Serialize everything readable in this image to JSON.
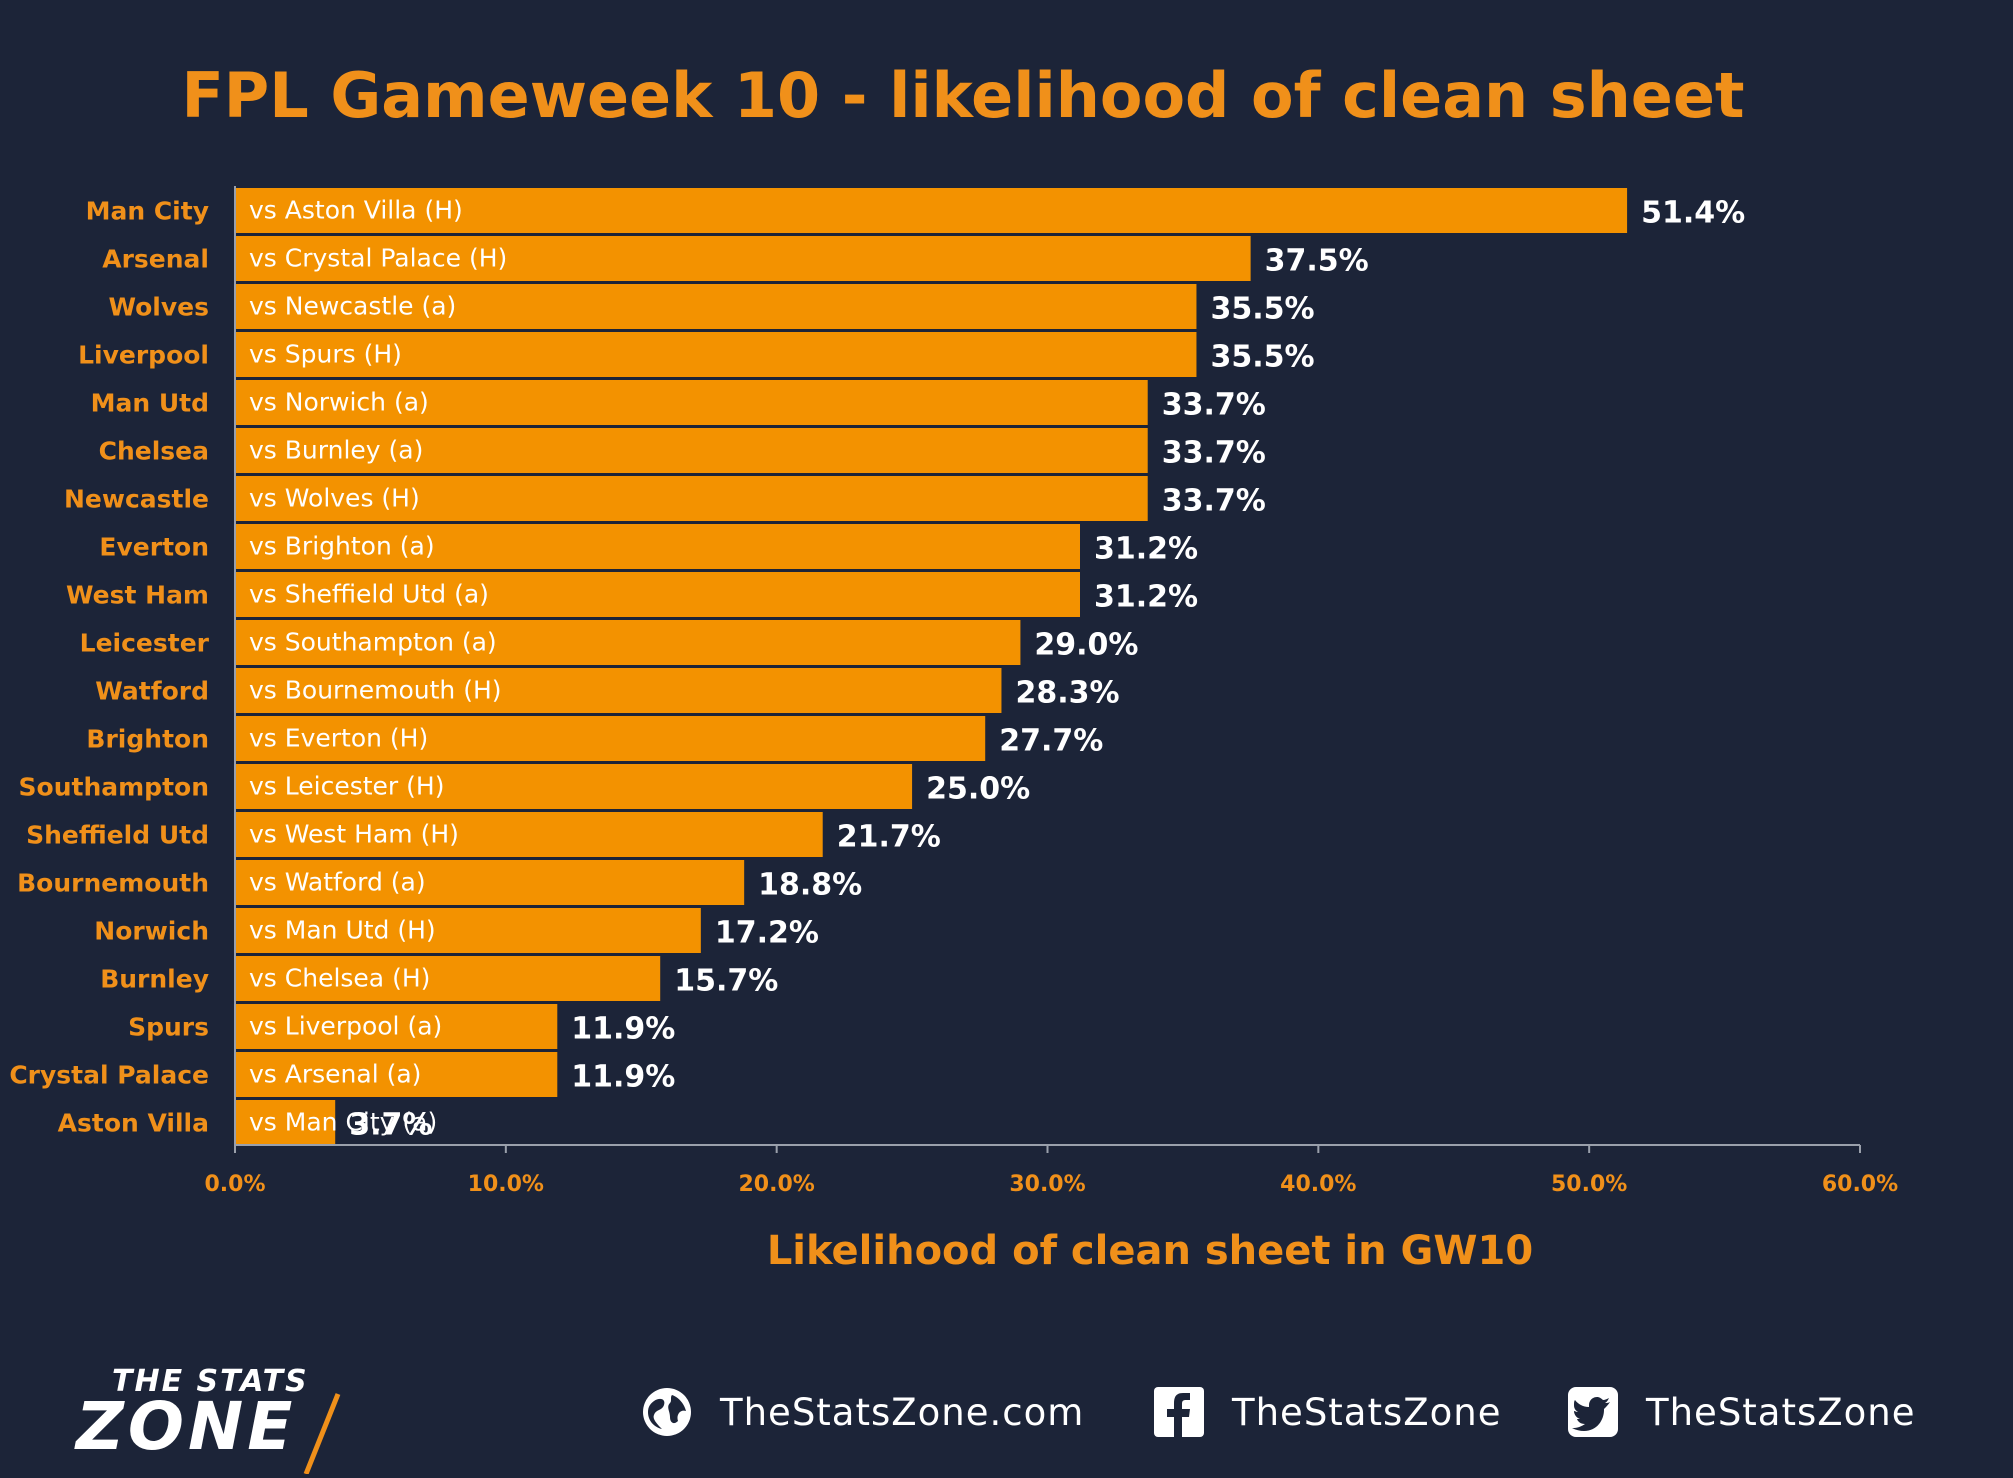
{
  "chart_data": {
    "type": "bar",
    "orientation": "horizontal",
    "title": "FPL Gameweek 10 - likelihood of clean sheet",
    "xlabel": "Likelihood of clean sheet in GW10",
    "ylabel": "",
    "xlim": [
      0,
      60
    ],
    "x_ticks": [
      "0.0%",
      "10.0%",
      "20.0%",
      "30.0%",
      "40.0%",
      "50.0%",
      "60.0%"
    ],
    "grid": false,
    "legend": "none",
    "categories": [
      "Man City",
      "Arsenal",
      "Wolves",
      "Liverpool",
      "Man Utd",
      "Chelsea",
      "Newcastle",
      "Everton",
      "West Ham",
      "Leicester",
      "Watford",
      "Brighton",
      "Southampton",
      "Sheffield Utd",
      "Bournemouth",
      "Norwich",
      "Burnley",
      "Spurs",
      "Crystal Palace",
      "Aston Villa"
    ],
    "fixtures": [
      "vs Aston Villa (H)",
      "vs Crystal Palace (H)",
      "vs Newcastle (a)",
      "vs Spurs (H)",
      "vs Norwich (a)",
      "vs Burnley (a)",
      "vs Wolves (H)",
      "vs Brighton (a)",
      "vs Sheffield Utd (a)",
      "vs Southampton (a)",
      "vs Bournemouth (H)",
      "vs Everton (H)",
      "vs Leicester (H)",
      "vs West Ham (H)",
      "vs Watford (a)",
      "vs Man Utd (H)",
      "vs Chelsea (H)",
      "vs Liverpool (a)",
      "vs Arsenal (a)",
      "vs Man City (a)"
    ],
    "values": [
      51.4,
      37.5,
      35.5,
      35.5,
      33.7,
      33.7,
      33.7,
      31.2,
      31.2,
      29.0,
      28.3,
      27.7,
      25.0,
      21.7,
      18.8,
      17.2,
      15.7,
      11.9,
      11.9,
      3.7
    ],
    "value_labels": [
      "51.4%",
      "37.5%",
      "35.5%",
      "35.5%",
      "33.7%",
      "33.7%",
      "33.7%",
      "31.2%",
      "31.2%",
      "29.0%",
      "28.3%",
      "27.7%",
      "25.0%",
      "21.7%",
      "18.8%",
      "17.2%",
      "15.7%",
      "11.9%",
      "11.9%",
      "3.7%"
    ]
  },
  "colors": {
    "background": "#1c2438",
    "bar": "#f39200",
    "accent": "#f0901a",
    "text_light": "#ffffff"
  },
  "footer": {
    "logo_top": "THE STATS",
    "logo_bottom": "ZONE",
    "website": "TheStatsZone.com",
    "facebook": "TheStatsZone",
    "twitter": "TheStatsZone",
    "icons": [
      "globe-icon",
      "facebook-icon",
      "twitter-icon"
    ]
  }
}
